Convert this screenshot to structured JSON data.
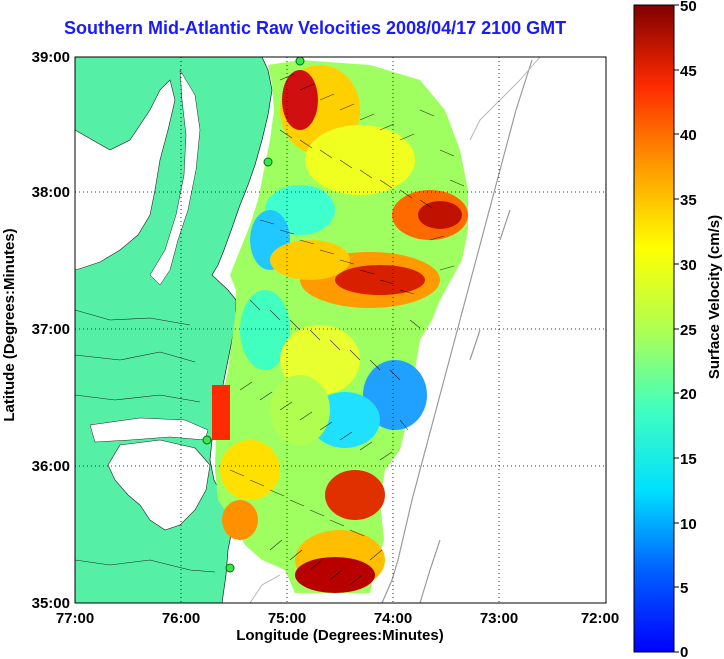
{
  "title": "Southern Mid-Atlantic Raw Velocities 2008/04/17 2100 GMT",
  "xlabel": "Longitude (Degrees:Minutes)",
  "ylabel": "Latitude (Degrees:Minutes)",
  "colorbar": {
    "label": "Surface Velocity (cm/s)",
    "min": 0,
    "max": 50,
    "ticks": [
      "0",
      "5",
      "10",
      "15",
      "20",
      "25",
      "30",
      "35",
      "40",
      "45",
      "50"
    ]
  },
  "axes": {
    "x_ticks": [
      "77:00",
      "76:00",
      "75:00",
      "74:00",
      "73:00",
      "72:00"
    ],
    "y_ticks": [
      "39:00",
      "38:00",
      "37:00",
      "36:00",
      "35:00"
    ],
    "x_range": [
      "77:00",
      "72:00"
    ],
    "y_range": [
      "35:00",
      "39:00"
    ],
    "grid": "dotted"
  },
  "colors": {
    "land": "#55f0a6",
    "title": "#1a1aff",
    "stations": "#37e84a"
  }
}
